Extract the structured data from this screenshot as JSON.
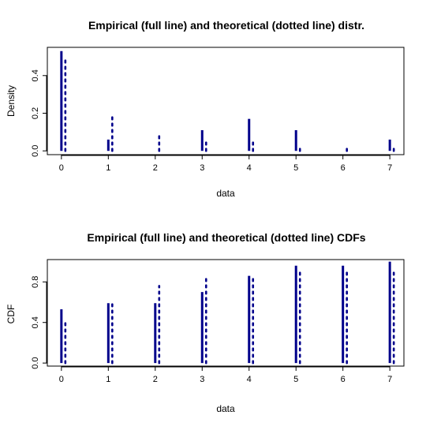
{
  "chart_data": [
    {
      "type": "bar",
      "title": "Empirical (full line) and theoretical (dotted line) distr.",
      "xlabel": "data",
      "ylabel": "Density",
      "xlim": [
        -0.3,
        7.3
      ],
      "ylim": [
        -0.02,
        0.55
      ],
      "xticks": [
        "0",
        "1",
        "2",
        "3",
        "4",
        "5",
        "6",
        "7"
      ],
      "yticks": [
        "0.0",
        "0.2",
        "0.4"
      ],
      "x": [
        0,
        1,
        2,
        3,
        4,
        5,
        6,
        7
      ],
      "colors": {
        "empirical": "#00008b",
        "theoretical": "#00008b"
      },
      "series": [
        {
          "values": [
            0.53,
            0.06,
            0.0,
            0.11,
            0.17,
            0.11,
            0.0,
            0.06
          ],
          "style": "solid"
        },
        {
          "values": [
            0.48,
            0.18,
            0.1,
            0.06,
            0.05,
            0.02,
            0.015,
            0.02
          ],
          "style": "dotted"
        }
      ]
    },
    {
      "type": "bar",
      "title": "Empirical (full line) and theoretical (dotted line) CDFs",
      "xlabel": "data",
      "ylabel": "CDF",
      "xlim": [
        -0.3,
        7.3
      ],
      "ylim": [
        -0.03,
        1.02
      ],
      "xticks": [
        "0",
        "1",
        "2",
        "3",
        "4",
        "5",
        "6",
        "7"
      ],
      "yticks": [
        "0.0",
        "0.4",
        "0.8"
      ],
      "x": [
        0,
        1,
        2,
        3,
        4,
        5,
        6,
        7
      ],
      "colors": {
        "empirical": "#00008b",
        "theoretical": "#00008b"
      },
      "series": [
        {
          "values": [
            0.53,
            0.59,
            0.59,
            0.7,
            0.86,
            0.96,
            0.96,
            1.0
          ],
          "style": "solid"
        },
        {
          "values": [
            0.43,
            0.6,
            0.76,
            0.83,
            0.85,
            0.91,
            0.92,
            0.92
          ],
          "style": "dotted"
        }
      ]
    }
  ]
}
